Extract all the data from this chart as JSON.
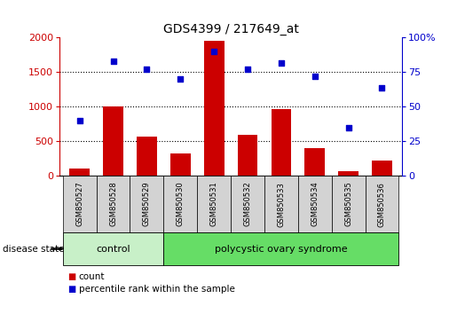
{
  "title": "GDS4399 / 217649_at",
  "samples": [
    "GSM850527",
    "GSM850528",
    "GSM850529",
    "GSM850530",
    "GSM850531",
    "GSM850532",
    "GSM850533",
    "GSM850534",
    "GSM850535",
    "GSM850536"
  ],
  "counts": [
    100,
    1000,
    570,
    320,
    1950,
    590,
    970,
    400,
    70,
    220
  ],
  "percentiles": [
    40,
    83,
    77,
    70,
    90,
    77,
    82,
    72,
    35,
    64
  ],
  "bar_color": "#cc0000",
  "dot_color": "#0000cc",
  "ylim_left": [
    0,
    2000
  ],
  "ylim_right": [
    0,
    100
  ],
  "yticks_left": [
    0,
    500,
    1000,
    1500,
    2000
  ],
  "yticks_right": [
    0,
    25,
    50,
    75,
    100
  ],
  "ytick_labels_right": [
    "0",
    "25",
    "50",
    "75",
    "100%"
  ],
  "group_labels": [
    "control",
    "polycystic ovary syndrome"
  ],
  "control_count": 3,
  "pcos_count": 7,
  "control_color": "#c8f0c8",
  "pcos_color": "#66dd66",
  "disease_state_label": "disease state",
  "legend_items": [
    "count",
    "percentile rank within the sample"
  ],
  "background_color": "#ffffff",
  "label_box_color": "#d3d3d3",
  "dotted_lines": [
    500,
    1000,
    1500
  ]
}
